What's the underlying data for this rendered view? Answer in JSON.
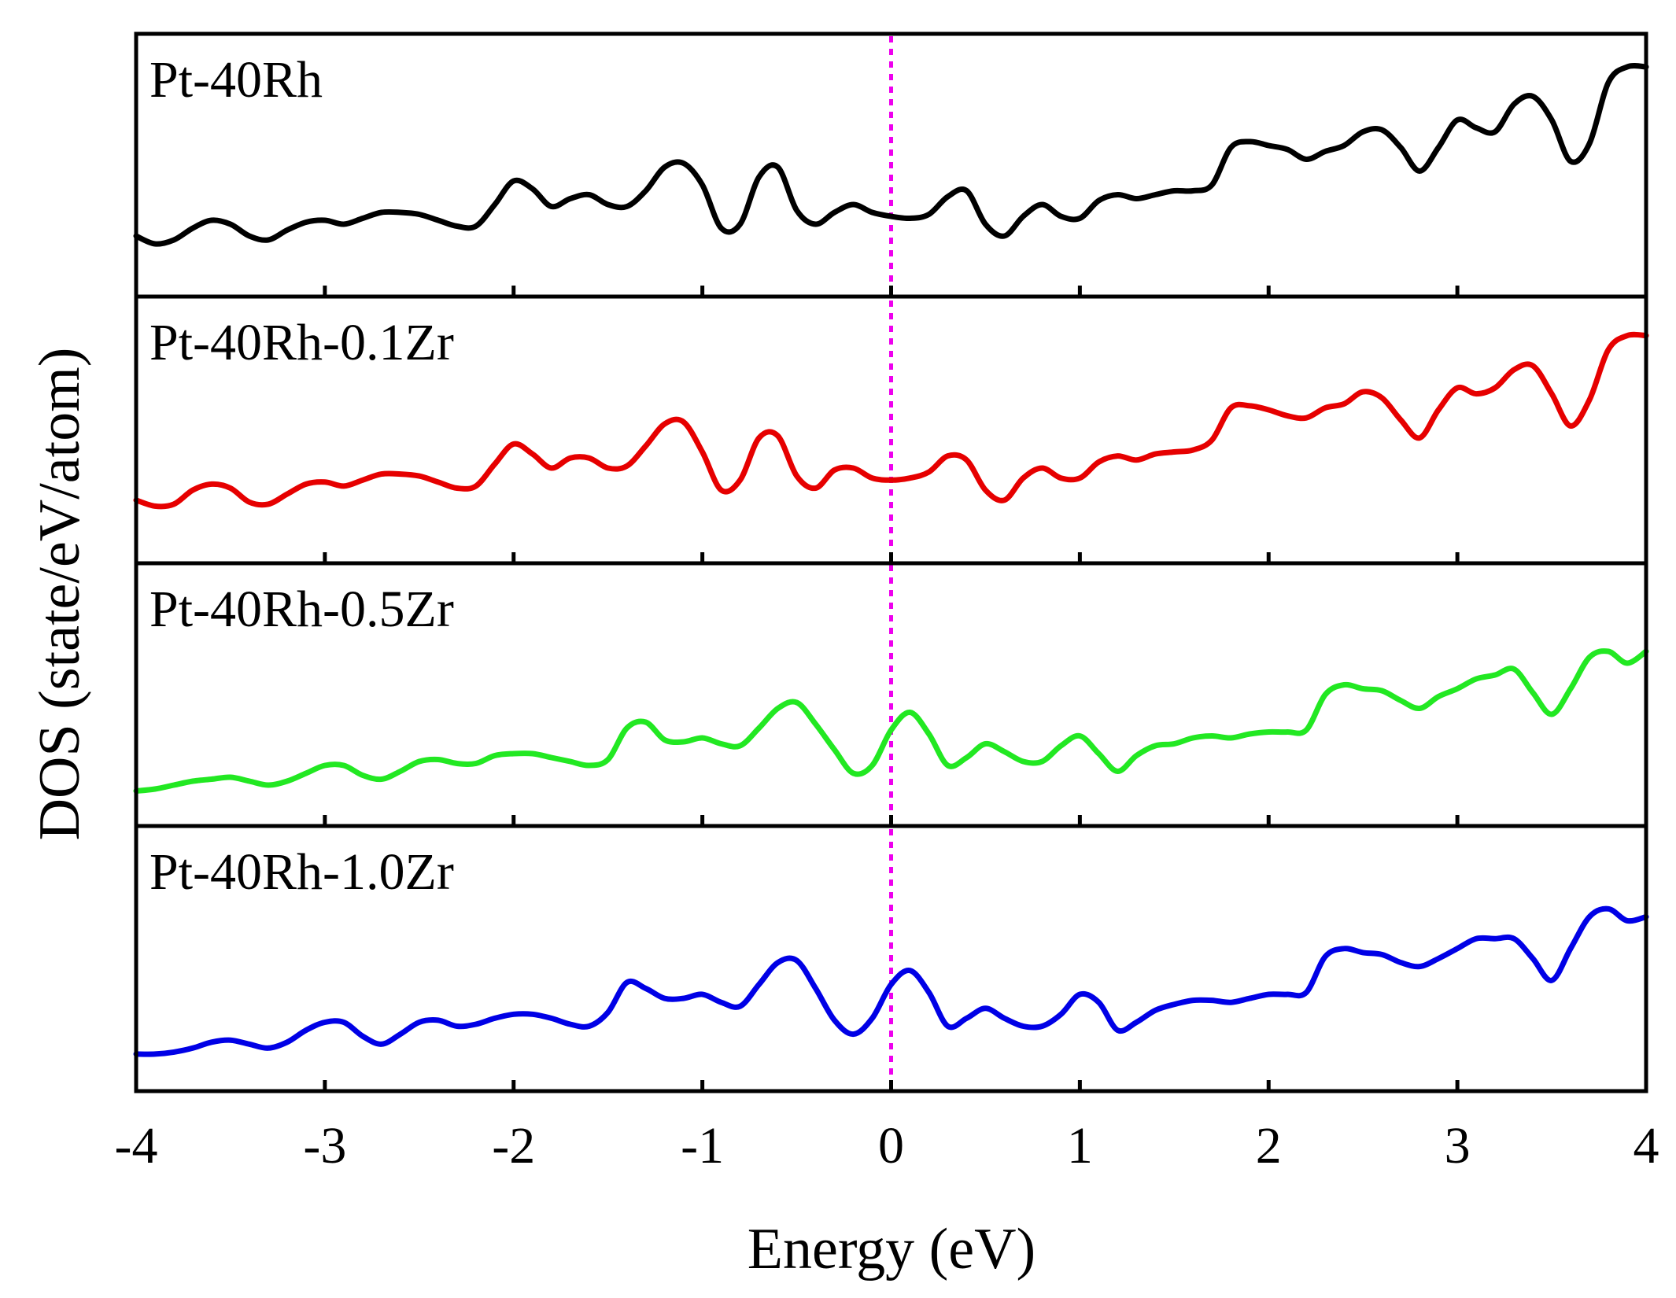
{
  "chart_data": {
    "type": "line",
    "layout": "stacked-panels",
    "xlabel": "Energy (eV)",
    "ylabel": "DOS (state/eV/atom)",
    "xlim": [
      -4,
      4
    ],
    "xticks": [
      -4,
      -3,
      -2,
      -1,
      0,
      1,
      2,
      3,
      4
    ],
    "xtick_labels": [
      "-4",
      "-3",
      "-2",
      "-1",
      "0",
      "1",
      "2",
      "3",
      "4"
    ],
    "ylim": [
      0,
      1
    ],
    "yticks_shown": false,
    "reference_line": {
      "x": 0,
      "style": "dotted",
      "color": "#ee00ee",
      "meaning": "Fermi level"
    },
    "x": [
      -4.0,
      -3.9,
      -3.8,
      -3.7,
      -3.6,
      -3.5,
      -3.4,
      -3.3,
      -3.2,
      -3.1,
      -3.0,
      -2.9,
      -2.8,
      -2.7,
      -2.6,
      -2.5,
      -2.4,
      -2.3,
      -2.2,
      -2.1,
      -2.0,
      -1.9,
      -1.8,
      -1.7,
      -1.6,
      -1.5,
      -1.4,
      -1.3,
      -1.2,
      -1.1,
      -1.0,
      -0.9,
      -0.8,
      -0.7,
      -0.6,
      -0.5,
      -0.4,
      -0.3,
      -0.2,
      -0.1,
      0.0,
      0.1,
      0.2,
      0.3,
      0.4,
      0.5,
      0.6,
      0.7,
      0.8,
      0.9,
      1.0,
      1.1,
      1.2,
      1.3,
      1.4,
      1.5,
      1.6,
      1.7,
      1.8,
      1.9,
      2.0,
      2.1,
      2.2,
      2.3,
      2.4,
      2.5,
      2.6,
      2.7,
      2.8,
      2.9,
      3.0,
      3.1,
      3.2,
      3.3,
      3.4,
      3.5,
      3.6,
      3.7,
      3.8,
      3.9,
      4.0
    ],
    "series": [
      {
        "name": "Pt-40Rh",
        "color": "#000000",
        "values": [
          0.14,
          0.1,
          0.12,
          0.18,
          0.22,
          0.2,
          0.14,
          0.12,
          0.17,
          0.21,
          0.22,
          0.2,
          0.23,
          0.26,
          0.26,
          0.25,
          0.22,
          0.19,
          0.19,
          0.3,
          0.42,
          0.38,
          0.29,
          0.33,
          0.35,
          0.3,
          0.29,
          0.37,
          0.49,
          0.51,
          0.4,
          0.18,
          0.2,
          0.44,
          0.49,
          0.27,
          0.2,
          0.26,
          0.3,
          0.26,
          0.24,
          0.23,
          0.25,
          0.34,
          0.37,
          0.2,
          0.14,
          0.24,
          0.3,
          0.24,
          0.23,
          0.32,
          0.35,
          0.33,
          0.35,
          0.37,
          0.37,
          0.4,
          0.59,
          0.62,
          0.6,
          0.58,
          0.53,
          0.57,
          0.6,
          0.67,
          0.68,
          0.59,
          0.47,
          0.59,
          0.73,
          0.69,
          0.67,
          0.81,
          0.85,
          0.73,
          0.52,
          0.61,
          0.92,
          1.0,
          1.0
        ]
      },
      {
        "name": "Pt-40Rh-0.1Zr",
        "color": "#e60000",
        "values": [
          0.15,
          0.12,
          0.13,
          0.2,
          0.23,
          0.21,
          0.14,
          0.13,
          0.18,
          0.23,
          0.24,
          0.22,
          0.25,
          0.28,
          0.28,
          0.27,
          0.24,
          0.21,
          0.22,
          0.33,
          0.43,
          0.38,
          0.31,
          0.36,
          0.36,
          0.31,
          0.32,
          0.42,
          0.53,
          0.54,
          0.39,
          0.2,
          0.25,
          0.46,
          0.47,
          0.27,
          0.21,
          0.3,
          0.31,
          0.26,
          0.25,
          0.26,
          0.29,
          0.37,
          0.35,
          0.2,
          0.15,
          0.26,
          0.31,
          0.26,
          0.26,
          0.34,
          0.37,
          0.35,
          0.38,
          0.39,
          0.4,
          0.45,
          0.61,
          0.62,
          0.6,
          0.57,
          0.56,
          0.61,
          0.63,
          0.69,
          0.66,
          0.55,
          0.46,
          0.6,
          0.71,
          0.68,
          0.71,
          0.8,
          0.82,
          0.68,
          0.52,
          0.65,
          0.9,
          0.97,
          0.97
        ]
      },
      {
        "name": "Pt-40Rh-0.5Zr",
        "color": "#22e822",
        "values": [
          0.01,
          0.02,
          0.04,
          0.06,
          0.07,
          0.08,
          0.06,
          0.04,
          0.06,
          0.1,
          0.14,
          0.14,
          0.09,
          0.07,
          0.11,
          0.16,
          0.17,
          0.15,
          0.15,
          0.19,
          0.2,
          0.2,
          0.18,
          0.16,
          0.14,
          0.17,
          0.33,
          0.36,
          0.27,
          0.26,
          0.28,
          0.25,
          0.24,
          0.33,
          0.43,
          0.46,
          0.35,
          0.22,
          0.1,
          0.14,
          0.32,
          0.41,
          0.3,
          0.14,
          0.18,
          0.25,
          0.21,
          0.16,
          0.16,
          0.24,
          0.29,
          0.2,
          0.11,
          0.19,
          0.24,
          0.25,
          0.28,
          0.29,
          0.28,
          0.3,
          0.31,
          0.31,
          0.32,
          0.5,
          0.55,
          0.53,
          0.52,
          0.47,
          0.43,
          0.49,
          0.53,
          0.58,
          0.6,
          0.63,
          0.51,
          0.4,
          0.53,
          0.69,
          0.72,
          0.66,
          0.72
        ]
      },
      {
        "name": "Pt-40Rh-1.0Zr",
        "color": "#0000e6",
        "values": [
          0.02,
          0.02,
          0.03,
          0.05,
          0.08,
          0.09,
          0.07,
          0.05,
          0.08,
          0.14,
          0.18,
          0.18,
          0.11,
          0.07,
          0.12,
          0.18,
          0.19,
          0.16,
          0.17,
          0.2,
          0.22,
          0.22,
          0.2,
          0.17,
          0.16,
          0.23,
          0.38,
          0.35,
          0.3,
          0.3,
          0.32,
          0.28,
          0.26,
          0.37,
          0.48,
          0.49,
          0.35,
          0.19,
          0.12,
          0.2,
          0.37,
          0.44,
          0.33,
          0.16,
          0.2,
          0.25,
          0.2,
          0.16,
          0.16,
          0.22,
          0.32,
          0.28,
          0.14,
          0.18,
          0.24,
          0.27,
          0.29,
          0.29,
          0.28,
          0.3,
          0.32,
          0.32,
          0.33,
          0.51,
          0.55,
          0.53,
          0.52,
          0.48,
          0.46,
          0.5,
          0.55,
          0.6,
          0.6,
          0.6,
          0.5,
          0.39,
          0.55,
          0.71,
          0.75,
          0.69,
          0.71
        ]
      }
    ]
  }
}
